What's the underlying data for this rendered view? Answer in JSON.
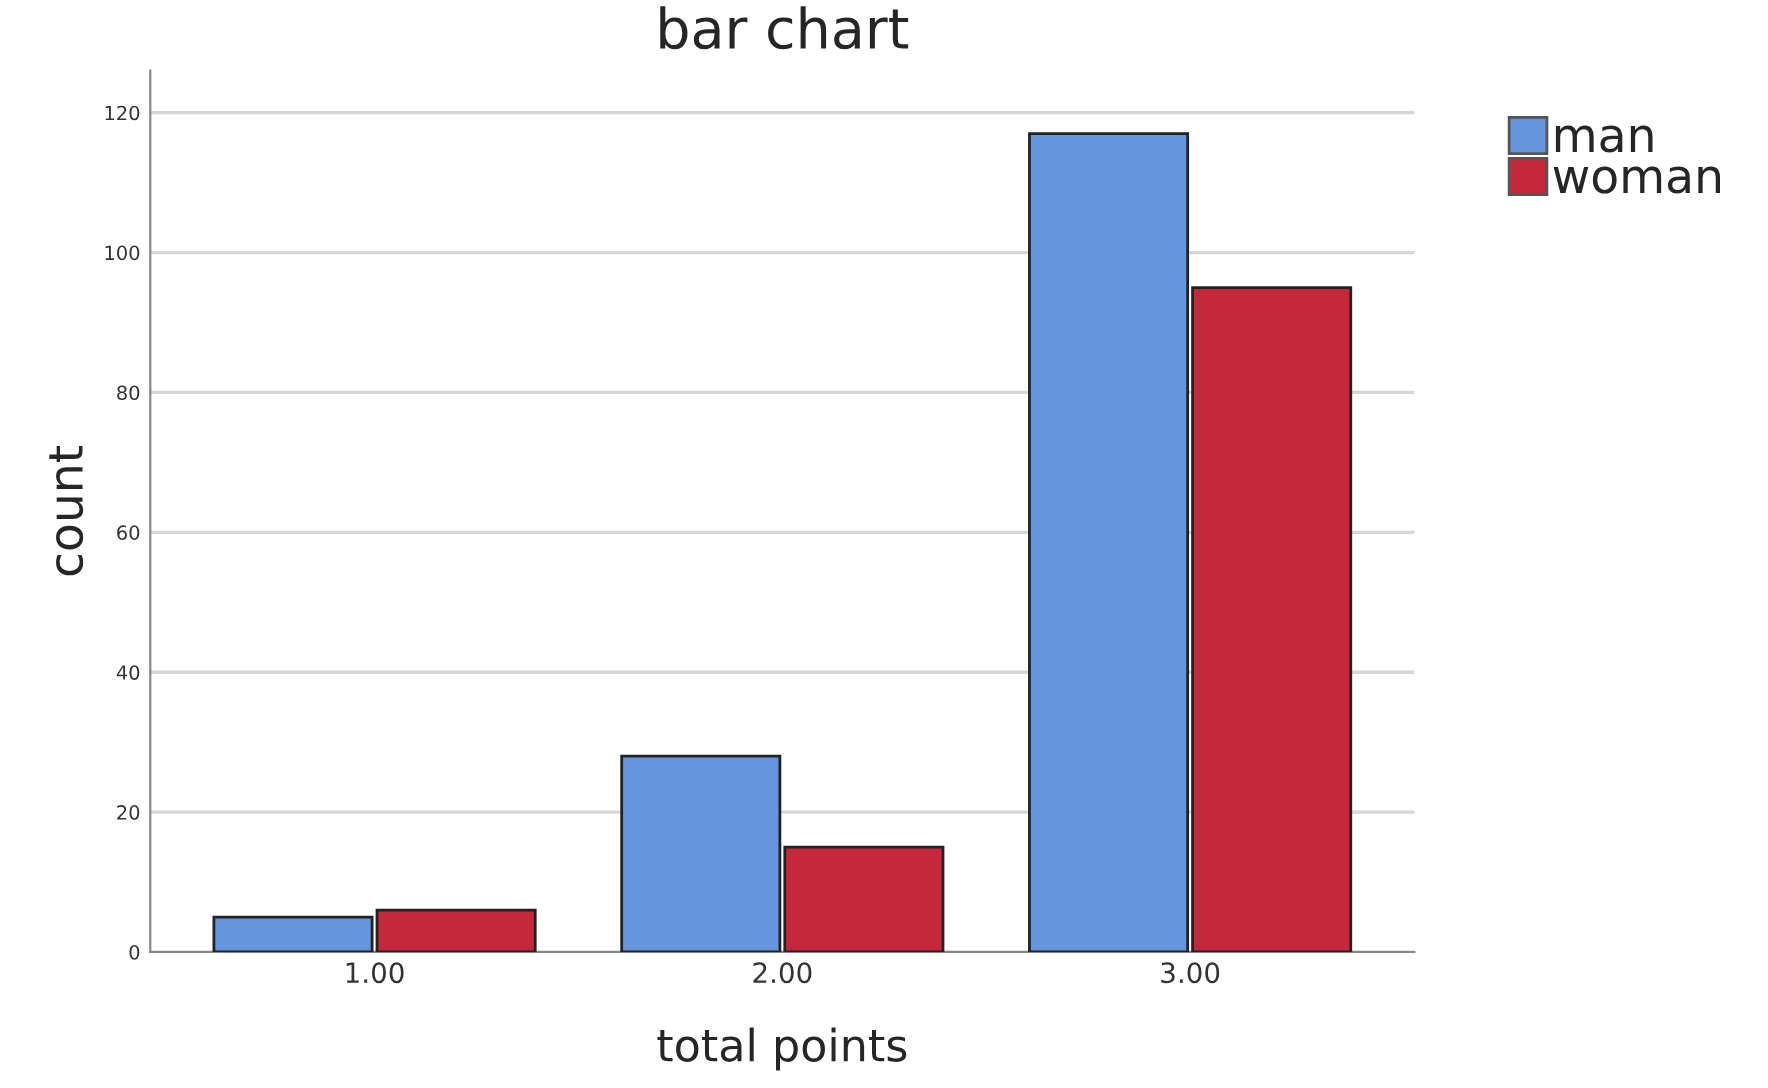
{
  "chart_data": {
    "type": "bar",
    "title": "bar chart",
    "xlabel": "total points",
    "ylabel": "count",
    "categories": [
      "1.00",
      "2.00",
      "3.00"
    ],
    "series": [
      {
        "name": "man",
        "color": "#6495dd",
        "values": [
          5,
          28,
          117
        ]
      },
      {
        "name": "woman",
        "color": "#c4283a",
        "values": [
          6,
          15,
          95
        ]
      }
    ],
    "ylim": [
      0,
      126
    ],
    "yticks": [
      0,
      20,
      40,
      60,
      80,
      100,
      120
    ],
    "grid": "y",
    "legend": "top right"
  }
}
